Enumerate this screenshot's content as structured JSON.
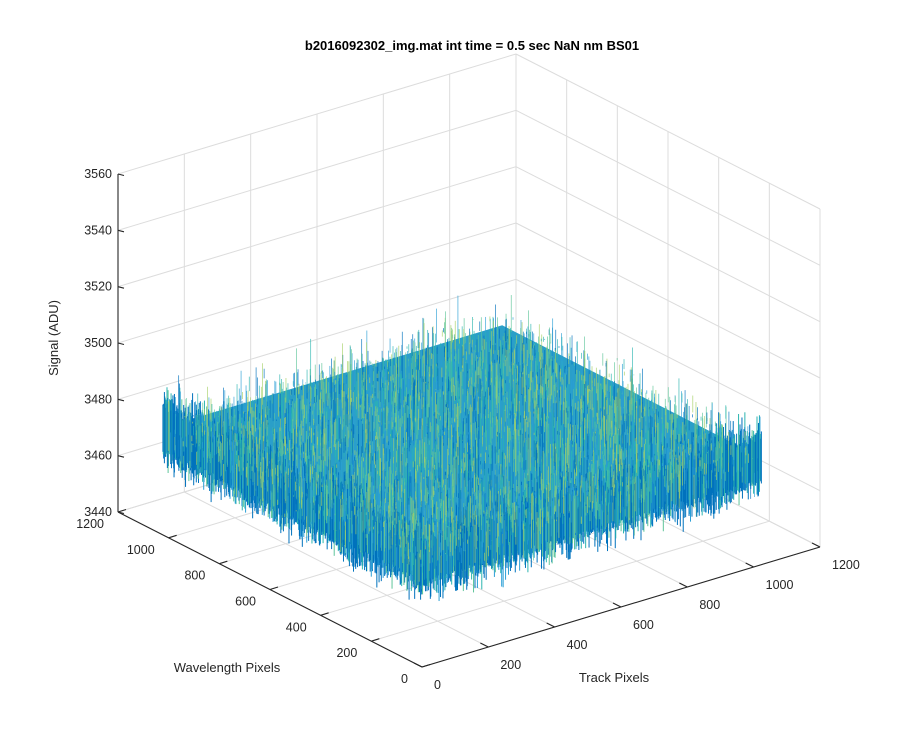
{
  "chart_data": {
    "type": "surface",
    "title": "b2016092302_img.mat int time = 0.5 sec  NaN nm BS01",
    "xlabel": "Track Pixels",
    "ylabel": "Wavelength Pixels",
    "zlabel": "Signal (ADU)",
    "xlim": [
      0,
      1200
    ],
    "ylim": [
      0,
      1200
    ],
    "zlim": [
      3440,
      3560
    ],
    "xticks": [
      "0",
      "200",
      "400",
      "600",
      "800",
      "1000",
      "1200"
    ],
    "yticks": [
      "0",
      "200",
      "400",
      "600",
      "800",
      "1000",
      "1200"
    ],
    "zticks": [
      "3440",
      "3460",
      "3480",
      "3500",
      "3520",
      "3540",
      "3560"
    ],
    "surface": {
      "x_extent": [
        1,
        1024
      ],
      "y_extent": [
        1,
        1024
      ],
      "mean_signal": 3478,
      "noise_range": [
        3445,
        3535
      ]
    },
    "grid": true,
    "colormap": [
      "#0072bd",
      "#2a9fd6",
      "#2cb5b0",
      "#5fc59a",
      "#a6d168"
    ]
  }
}
